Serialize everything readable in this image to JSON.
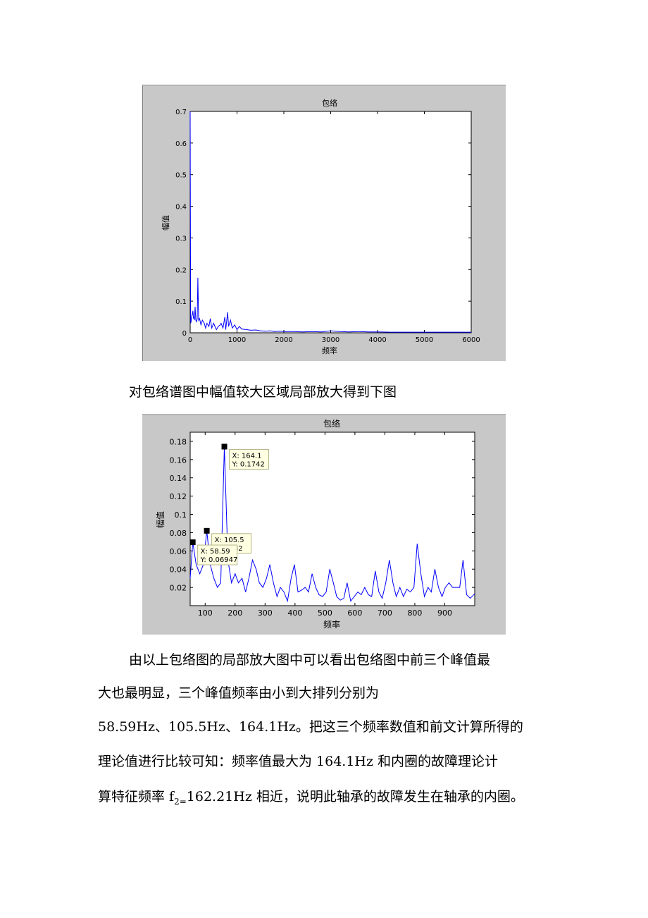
{
  "figure1": {
    "chart_data": {
      "type": "line",
      "title": "包络",
      "xlabel": "频率",
      "ylabel": "幅值",
      "xlim": [
        0,
        6000
      ],
      "ylim": [
        0,
        0.7
      ],
      "xticks": [
        "0",
        "1000",
        "2000",
        "3000",
        "4000",
        "5000",
        "6000"
      ],
      "yticks": [
        "0",
        "0.1",
        "0.2",
        "0.3",
        "0.4",
        "0.5",
        "0.6",
        "0.7"
      ],
      "grid": false,
      "line_color": "#0000ff",
      "series": [
        {
          "x": [
            0,
            10,
            20,
            30,
            40,
            50,
            58.59,
            70,
            80,
            90,
            105.5,
            120,
            140,
            150,
            164.1,
            180,
            200,
            230,
            260,
            300,
            330,
            360,
            400,
            430,
            460,
            500,
            530,
            560,
            600,
            640,
            660,
            700,
            740,
            760,
            800,
            820,
            860,
            900,
            950,
            1000,
            1050,
            1100,
            1200,
            1300,
            1400,
            1500,
            1600,
            1700,
            1800,
            1900,
            2000,
            2200,
            2400,
            2600,
            2800,
            3000,
            3200,
            3400,
            3600,
            3800,
            4000,
            4300,
            4600,
            5000,
            5400,
            5800,
            6000
          ],
          "values": [
            0.7,
            0.03,
            0.035,
            0.05,
            0.055,
            0.06,
            0.06947,
            0.045,
            0.05,
            0.04,
            0.082,
            0.04,
            0.035,
            0.045,
            0.1742,
            0.04,
            0.045,
            0.025,
            0.04,
            0.03,
            0.015,
            0.03,
            0.02,
            0.045,
            0.015,
            0.03,
            0.02,
            0.01,
            0.02,
            0.025,
            0.03,
            0.015,
            0.05,
            0.01,
            0.065,
            0.02,
            0.04,
            0.015,
            0.025,
            0.01,
            0.02,
            0.012,
            0.01,
            0.008,
            0.009,
            0.006,
            0.005,
            0.006,
            0.004,
            0.005,
            0.004,
            0.004,
            0.003,
            0.004,
            0.003,
            0.006,
            0.004,
            0.003,
            0.004,
            0.003,
            0.003,
            0.002,
            0.002,
            0.002,
            0.002,
            0.002,
            0.002
          ]
        }
      ]
    }
  },
  "caption1": "对包络谱图中幅值较大区域局部放大得到下图",
  "figure2": {
    "chart_data": {
      "type": "line",
      "title": "包络",
      "xlabel": "频率",
      "ylabel": "幅值",
      "xlim": [
        50,
        1000
      ],
      "ylim": [
        0,
        0.19
      ],
      "xticks": [
        "100",
        "200",
        "300",
        "400",
        "500",
        "600",
        "700",
        "800",
        "900"
      ],
      "yticks": [
        "0.02",
        "0.04",
        "0.06",
        "0.08",
        "0.1",
        "0.12",
        "0.14",
        "0.16",
        "0.18"
      ],
      "grid": false,
      "line_color": "#0000ff",
      "series": [
        {
          "x": [
            50,
            58.59,
            70,
            82,
            94,
            105.5,
            117,
            129,
            141,
            152,
            164.1,
            176,
            188,
            200,
            211,
            223,
            235,
            246,
            258,
            270,
            281,
            293,
            305,
            316,
            328,
            340,
            351,
            363,
            375,
            387,
            398,
            410,
            422,
            434,
            445,
            457,
            469,
            480,
            492,
            504,
            516,
            528,
            539,
            551,
            563,
            574,
            586,
            598,
            610,
            621,
            633,
            645,
            656,
            668,
            680,
            691,
            703,
            715,
            727,
            738,
            750,
            762,
            773,
            785,
            797,
            808,
            820,
            832,
            844,
            855,
            867,
            879,
            891,
            902,
            914,
            926,
            938,
            950,
            961,
            973,
            985,
            1000
          ],
          "values": [
            0.03,
            0.06947,
            0.045,
            0.035,
            0.045,
            0.082,
            0.045,
            0.03,
            0.02,
            0.025,
            0.1742,
            0.05,
            0.025,
            0.035,
            0.025,
            0.03,
            0.015,
            0.03,
            0.05,
            0.04,
            0.025,
            0.02,
            0.03,
            0.045,
            0.025,
            0.01,
            0.02,
            0.015,
            0.005,
            0.03,
            0.045,
            0.015,
            0.017,
            0.02,
            0.015,
            0.035,
            0.02,
            0.012,
            0.01,
            0.015,
            0.04,
            0.025,
            0.01,
            0.006,
            0.008,
            0.025,
            0.005,
            0.01,
            0.015,
            0.012,
            0.02,
            0.012,
            0.01,
            0.038,
            0.015,
            0.008,
            0.025,
            0.05,
            0.025,
            0.01,
            0.02,
            0.01,
            0.018,
            0.015,
            0.02,
            0.068,
            0.035,
            0.01,
            0.02,
            0.015,
            0.04,
            0.02,
            0.01,
            0.02,
            0.025,
            0.02,
            0.02,
            0.02,
            0.05,
            0.012,
            0.008,
            0.013
          ]
        }
      ],
      "datatips": [
        {
          "x": 164.1,
          "y": 0.1742,
          "line1": "X: 164.1",
          "line2": "Y: 0.1742"
        },
        {
          "x": 105.5,
          "y": 0.082,
          "line1": "X: 105.5",
          "line2": "Y: 0.082"
        },
        {
          "x": 58.59,
          "y": 0.06947,
          "line1": "X: 58.59",
          "line2": "Y: 0.06947"
        }
      ]
    }
  },
  "paragraph": {
    "line1": "由以上包络图的局部放大图中可以看出包络图中前三个峰值最",
    "line2": "大也最明显，三个峰值频率由小到大排列分别为",
    "line3": "58.59Hz、105.5Hz、164.1Hz。把这三个频率数值和前文计算所得的",
    "line4": "理论值进行比较可知：频率值最大为 164.1Hz 和内圈的故障理论计",
    "line5_pre": "算特征频率 f",
    "line5_sub": "2=",
    "line5_post": "162.21Hz 相近，说明此轴承的故障发生在轴承的内圈。"
  }
}
